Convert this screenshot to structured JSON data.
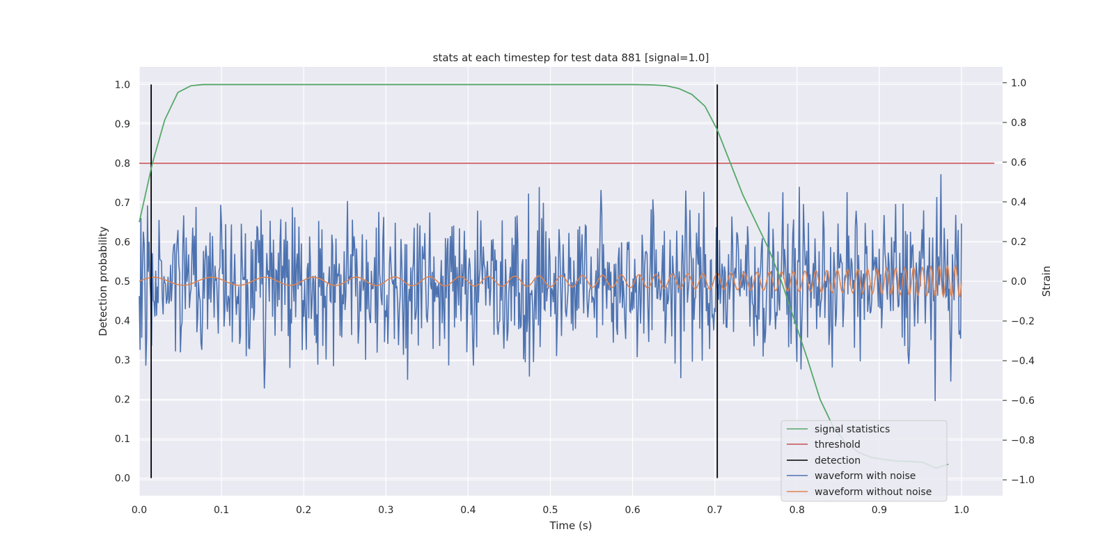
{
  "chart_data": {
    "type": "line",
    "title": "stats at each timestep for test data 881 [signal=1.0]",
    "xlabel": "Time (s)",
    "ylabel": "Detection probability",
    "ylabel_right": "Strain",
    "xlim": [
      0.0,
      1.05
    ],
    "ylim": [
      -0.045,
      1.045
    ],
    "ylim_right": [
      -1.08,
      1.08
    ],
    "x_ticks": [
      0.0,
      0.1,
      0.2,
      0.3,
      0.4,
      0.5,
      0.6,
      0.7,
      0.8,
      0.9,
      1.0
    ],
    "x_tick_labels": [
      "0.0",
      "0.1",
      "0.2",
      "0.3",
      "0.4",
      "0.5",
      "0.6",
      "0.7",
      "0.8",
      "0.9",
      "1.0"
    ],
    "y_ticks": [
      0.0,
      0.1,
      0.2,
      0.3,
      0.4,
      0.5,
      0.6,
      0.7,
      0.8,
      0.9,
      1.0
    ],
    "y_tick_labels": [
      "0.0",
      "0.1",
      "0.2",
      "0.3",
      "0.4",
      "0.5",
      "0.6",
      "0.7",
      "0.8",
      "0.9",
      "1.0"
    ],
    "y2_ticks": [
      -1.0,
      -0.8,
      -0.6,
      -0.4,
      -0.2,
      0.0,
      0.2,
      0.4,
      0.6,
      0.8,
      1.0
    ],
    "y2_tick_labels": [
      "−1.0",
      "−0.8",
      "−0.6",
      "−0.4",
      "−0.2",
      "0.0",
      "0.2",
      "0.4",
      "0.6",
      "0.8",
      "1.0"
    ],
    "grid": true,
    "legend_position": "lower-right",
    "series": [
      {
        "name": "signal statistics",
        "axis": "left",
        "color": "#55a868",
        "x": [
          0.0,
          0.016,
          0.031,
          0.047,
          0.063,
          0.078,
          0.1,
          0.2,
          0.3,
          0.4,
          0.5,
          0.6,
          0.625,
          0.641,
          0.656,
          0.672,
          0.688,
          0.703,
          0.719,
          0.734,
          0.75,
          0.766,
          0.781,
          0.797,
          0.813,
          0.828,
          0.844,
          0.859,
          0.875,
          0.891,
          0.906,
          0.922,
          0.938,
          0.953,
          0.969,
          0.984
        ],
        "y": [
          0.65,
          0.8,
          0.91,
          0.98,
          0.997,
          1.0,
          1.0,
          1.0,
          1.0,
          1.0,
          1.0,
          1.0,
          0.999,
          0.997,
          0.99,
          0.975,
          0.945,
          0.885,
          0.8,
          0.72,
          0.65,
          0.58,
          0.5,
          0.4,
          0.3,
          0.2,
          0.13,
          0.09,
          0.065,
          0.052,
          0.047,
          0.043,
          0.042,
          0.04,
          0.025,
          0.035
        ]
      },
      {
        "name": "threshold",
        "axis": "left",
        "color": "#c44e52",
        "x": [
          0.0,
          1.04
        ],
        "y": [
          0.8,
          0.8
        ]
      },
      {
        "name": "detection",
        "axis": "left",
        "color": "#000000",
        "x": [
          0.0145,
          0.703
        ],
        "y_range": [
          0.0,
          1.0
        ]
      },
      {
        "name": "waveform with noise",
        "axis": "right",
        "color": "#4c72b0",
        "note": "noisy strain, roughly within [-1.0, 1.0]",
        "sample_count": 1000
      },
      {
        "name": "waveform without noise",
        "axis": "right",
        "color": "#dd8452",
        "note": "chirp with amplitude growing from ~0.02 to ~0.08"
      }
    ]
  },
  "legend": {
    "items": [
      {
        "label": "signal statistics",
        "color": "#55a868"
      },
      {
        "label": "threshold",
        "color": "#c44e52"
      },
      {
        "label": "detection",
        "color": "#000000"
      },
      {
        "label": "waveform with noise",
        "color": "#4c72b0"
      },
      {
        "label": "waveform without noise",
        "color": "#dd8452"
      }
    ]
  }
}
